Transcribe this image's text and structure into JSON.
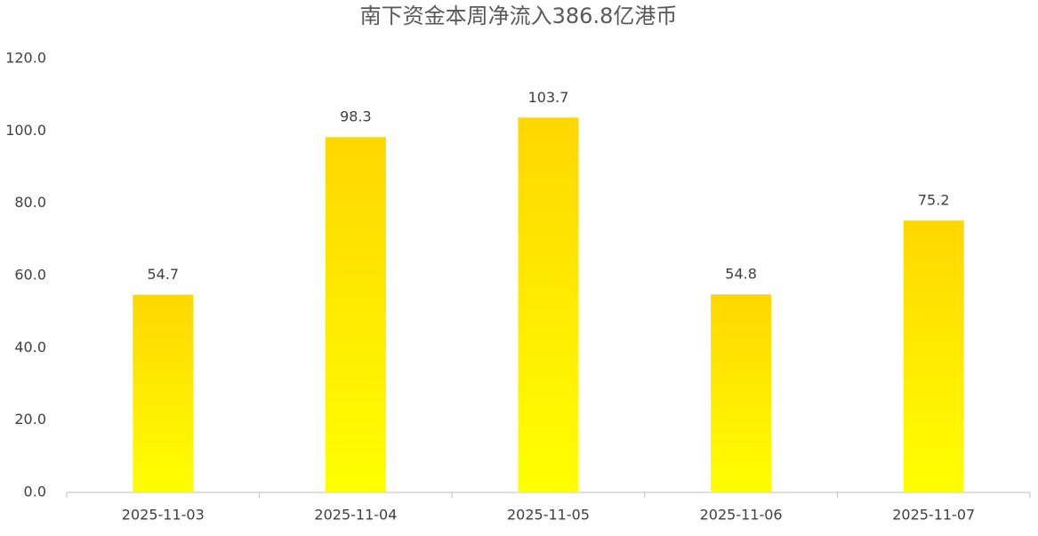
{
  "chart_data": {
    "type": "bar",
    "title": "南下资金本周净流入386.8亿港币",
    "categories": [
      "2025-11-03",
      "2025-11-04",
      "2025-11-05",
      "2025-11-06",
      "2025-11-07"
    ],
    "values": [
      54.7,
      98.3,
      103.7,
      54.8,
      75.2
    ],
    "color": "#FFD700",
    "ylim": [
      0,
      120
    ],
    "yticks": [
      {
        "value": 0,
        "label": "0.0"
      },
      {
        "value": 20,
        "label": "20.0"
      },
      {
        "value": 40,
        "label": "40.0"
      },
      {
        "value": 60,
        "label": "60.0"
      },
      {
        "value": 80,
        "label": "80.0"
      },
      {
        "value": 100,
        "label": "100.0"
      },
      {
        "value": 120,
        "label": "120.0"
      }
    ],
    "grid": false
  }
}
